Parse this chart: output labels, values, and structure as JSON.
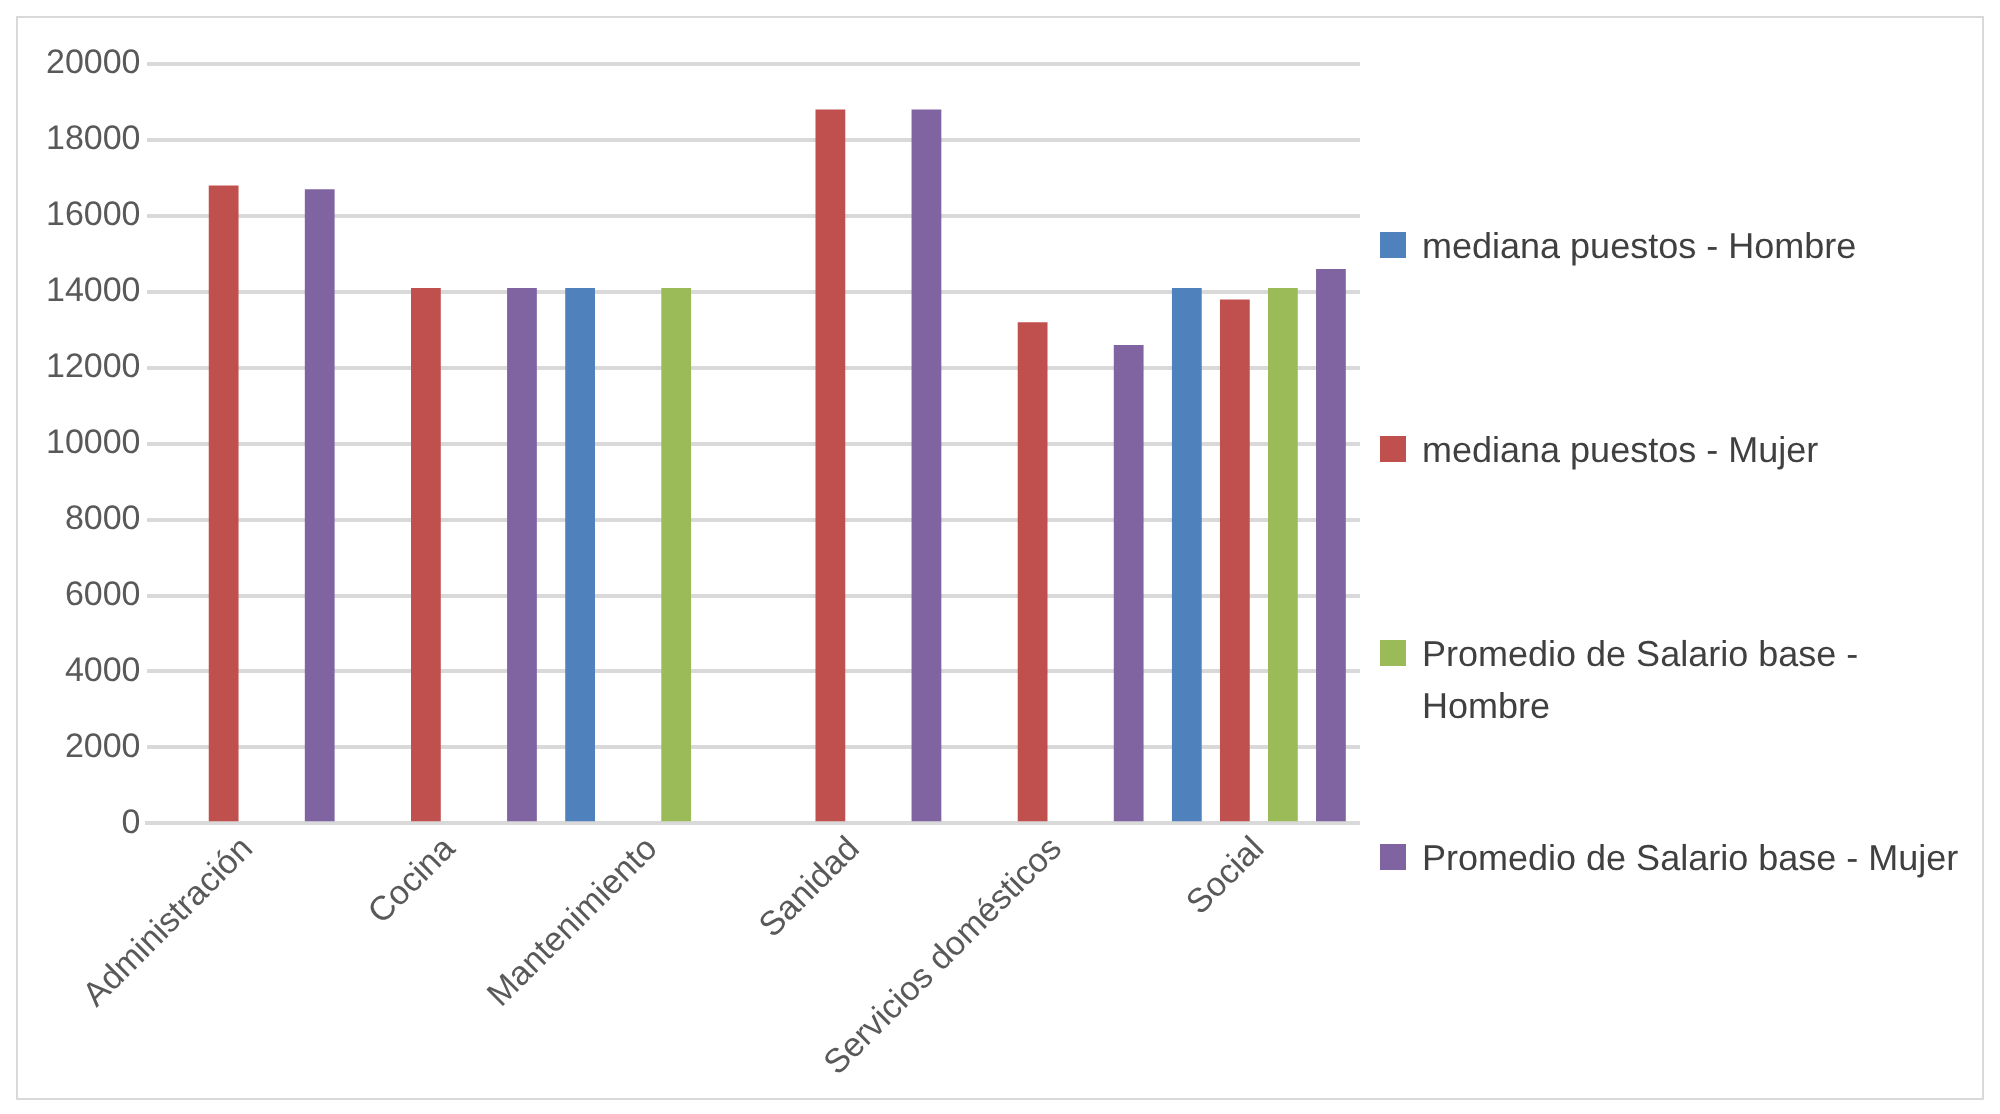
{
  "chart_data": {
    "type": "bar",
    "categories": [
      "Administración",
      "Cocina",
      "Mantenimiento",
      "Sanidad",
      "Servicios domésticos",
      "Social"
    ],
    "series": [
      {
        "name": "mediana puestos - Hombre",
        "color": "#4f81bd",
        "values": [
          null,
          null,
          14100,
          null,
          null,
          14100
        ]
      },
      {
        "name": "mediana puestos - Mujer",
        "color": "#c0504d",
        "values": [
          16800,
          14100,
          null,
          18800,
          13200,
          13800
        ]
      },
      {
        "name": "Promedio de Salario base - Hombre",
        "color": "#9bbb59",
        "values": [
          null,
          null,
          14100,
          null,
          null,
          14100
        ]
      },
      {
        "name": "Promedio de Salario base - Mujer",
        "color": "#8064a2",
        "values": [
          16700,
          14100,
          null,
          18800,
          12600,
          14600
        ]
      }
    ],
    "ylim": [
      0,
      20000
    ],
    "yticks": [
      0,
      2000,
      4000,
      6000,
      8000,
      10000,
      12000,
      14000,
      16000,
      18000,
      20000
    ],
    "grid": "y",
    "legend": "right"
  }
}
